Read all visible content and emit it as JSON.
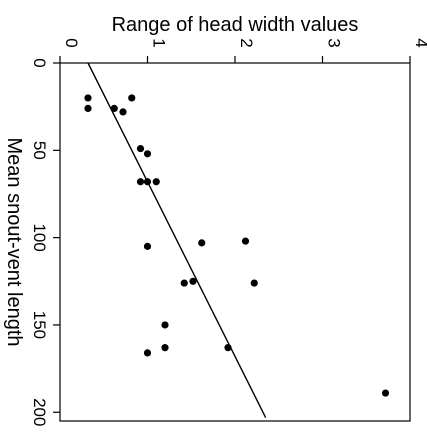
{
  "chart_data": {
    "type": "scatter",
    "orientation": "rotated-90-clockwise",
    "xlabel": "Mean snout-vent length",
    "ylabel": "Range of head width values",
    "xlim": [
      0,
      205
    ],
    "ylim": [
      0,
      4
    ],
    "x_ticks": [
      {
        "value": 0,
        "label": "0"
      },
      {
        "value": 50,
        "label": "50"
      },
      {
        "value": 100,
        "label": "100"
      },
      {
        "value": 150,
        "label": "150"
      },
      {
        "value": 200,
        "label": "200"
      }
    ],
    "y_ticks": [
      {
        "value": 0,
        "label": "0"
      },
      {
        "value": 1,
        "label": "1"
      },
      {
        "value": 2,
        "label": "2"
      },
      {
        "value": 3,
        "label": "3"
      },
      {
        "value": 4,
        "label": "4"
      }
    ],
    "points": [
      {
        "x": 20,
        "y": 0.32
      },
      {
        "x": 26,
        "y": 0.32
      },
      {
        "x": 20,
        "y": 0.82
      },
      {
        "x": 26,
        "y": 0.62
      },
      {
        "x": 28,
        "y": 0.72
      },
      {
        "x": 49,
        "y": 0.92
      },
      {
        "x": 52,
        "y": 1.0
      },
      {
        "x": 68,
        "y": 0.92
      },
      {
        "x": 68,
        "y": 1.0
      },
      {
        "x": 68,
        "y": 1.1
      },
      {
        "x": 103,
        "y": 1.62
      },
      {
        "x": 102,
        "y": 2.12
      },
      {
        "x": 105,
        "y": 1.0
      },
      {
        "x": 125,
        "y": 1.52
      },
      {
        "x": 126,
        "y": 1.42
      },
      {
        "x": 126,
        "y": 2.22
      },
      {
        "x": 150,
        "y": 1.2
      },
      {
        "x": 163,
        "y": 1.2
      },
      {
        "x": 163,
        "y": 1.92
      },
      {
        "x": 166,
        "y": 1.0
      },
      {
        "x": 189,
        "y": 3.72
      }
    ],
    "fit_line": {
      "x": [
        0,
        203
      ],
      "y": [
        0.32,
        2.35
      ]
    },
    "grid": false,
    "colors": {
      "points": "#000000",
      "line": "#000000",
      "axes": "#000000"
    }
  }
}
